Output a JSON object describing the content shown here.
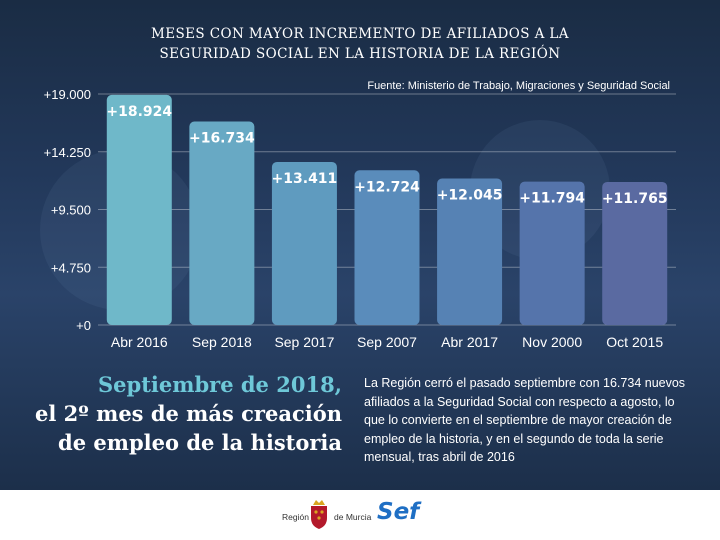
{
  "title_line1": "MESES CON MAYOR INCREMENTO DE AFILIADOS A LA",
  "title_line2": "SEGURIDAD SOCIAL EN LA HISTORIA DE LA REGIÓN",
  "source": "Fuente: Ministerio de Trabajo, Migraciones y Seguridad Social",
  "chart_data": {
    "type": "bar",
    "categories": [
      "Abr 2016",
      "Sep 2018",
      "Sep 2017",
      "Sep 2007",
      "Abr 2017",
      "Nov 2000",
      "Oct 2015"
    ],
    "values": [
      18924,
      16734,
      13411,
      12724,
      12045,
      11794,
      11765
    ],
    "value_labels": [
      "+18.924",
      "+16.734",
      "+13.411",
      "+12.724",
      "+12.045",
      "+11.794",
      "+11.765"
    ],
    "bar_colors": [
      "#6fb8c9",
      "#68a9c4",
      "#5f9bbf",
      "#5a8cbb",
      "#5682b4",
      "#5574ab",
      "#5a6aa1"
    ],
    "yticks": [
      0,
      4750,
      9500,
      14250,
      19000
    ],
    "ytick_labels": [
      "+0",
      "+4.750",
      "+9.500",
      "+14.250",
      "+19.000"
    ],
    "ylim": [
      0,
      19000
    ],
    "grid": true
  },
  "headline": {
    "line1": "Septiembre de 2018,",
    "line2": "el 2º mes de más creación",
    "line3": "de empleo de la historia"
  },
  "description": "La Región cerró el pasado septiembre con 16.734 nuevos afiliados a la Seguridad Social con respecto a agosto, lo que lo convierte en el septiembre de mayor creación de empleo de la historia, y en el segundo de toda la serie mensual, tras abril de 2016",
  "footer": {
    "region_left": "Región",
    "region_right": "de Murcia",
    "sef_logo": "Sef",
    "colors": {
      "sef": "#1f6fc4",
      "crest_red": "#b3192b",
      "crest_gold": "#d9a521"
    }
  }
}
